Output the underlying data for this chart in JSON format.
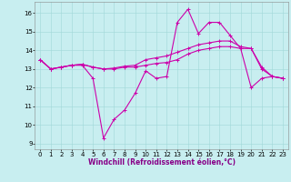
{
  "xlabel": "Windchill (Refroidissement éolien,°C)",
  "bg_color": "#c8eef0",
  "line_color": "#cc00aa",
  "grid_color": "#a0d8d8",
  "xlim": [
    -0.5,
    23.5
  ],
  "ylim": [
    8.7,
    16.6
  ],
  "yticks": [
    9,
    10,
    11,
    12,
    13,
    14,
    15,
    16
  ],
  "xticks": [
    0,
    1,
    2,
    3,
    4,
    5,
    6,
    7,
    8,
    9,
    10,
    11,
    12,
    13,
    14,
    15,
    16,
    17,
    18,
    19,
    20,
    21,
    22,
    23
  ],
  "line1_x": [
    0,
    1,
    2,
    3,
    4,
    5,
    6,
    7,
    8,
    9,
    10,
    11,
    12,
    13,
    14,
    15,
    16,
    17,
    18,
    19,
    20,
    21,
    22,
    23
  ],
  "line1_y": [
    13.5,
    13.0,
    13.1,
    13.2,
    13.2,
    12.5,
    9.3,
    10.3,
    10.8,
    11.7,
    12.9,
    12.5,
    12.6,
    15.5,
    16.2,
    14.9,
    15.5,
    15.5,
    14.8,
    14.1,
    12.0,
    12.5,
    12.6,
    12.5
  ],
  "line2_x": [
    0,
    1,
    2,
    3,
    4,
    5,
    6,
    7,
    8,
    9,
    10,
    11,
    12,
    13,
    14,
    15,
    16,
    17,
    18,
    19,
    20,
    21,
    22,
    23
  ],
  "line2_y": [
    13.5,
    13.0,
    13.1,
    13.2,
    13.25,
    13.1,
    13.0,
    13.0,
    13.1,
    13.1,
    13.2,
    13.3,
    13.35,
    13.5,
    13.8,
    14.0,
    14.1,
    14.2,
    14.2,
    14.1,
    14.1,
    13.0,
    12.6,
    12.5
  ],
  "line3_x": [
    0,
    1,
    2,
    3,
    4,
    5,
    6,
    7,
    8,
    9,
    10,
    11,
    12,
    13,
    14,
    15,
    16,
    17,
    18,
    19,
    20,
    21,
    22,
    23
  ],
  "line3_y": [
    13.5,
    13.0,
    13.1,
    13.2,
    13.25,
    13.1,
    13.0,
    13.05,
    13.15,
    13.2,
    13.5,
    13.6,
    13.7,
    13.9,
    14.1,
    14.3,
    14.4,
    14.5,
    14.5,
    14.2,
    14.1,
    13.1,
    12.6,
    12.5
  ],
  "xlabel_fontsize": 5.5,
  "tick_fontsize": 5.0,
  "linewidth": 0.8,
  "markersize": 3.0
}
